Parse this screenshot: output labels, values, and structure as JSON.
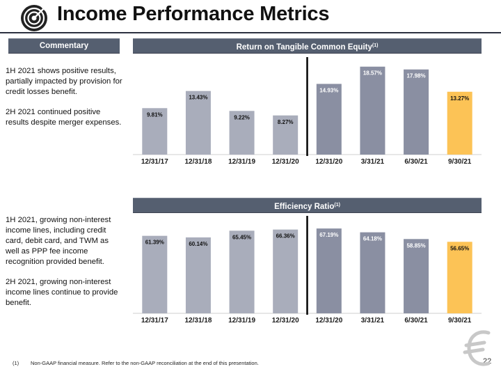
{
  "page": {
    "title": "Income Performance Metrics",
    "commentary_header": "Commentary",
    "commentary_top": [
      "1H 2021 shows positive results, partially impacted by provision for credit losses benefit.",
      "2H 2021 continued positive results despite merger expenses."
    ],
    "commentary_bottom": [
      "1H 2021, growing non-interest income lines, including credit card, debit card, and TWM as well as PPP fee income recognition provided benefit.",
      "2H 2021, growing non-interest income lines continue to provide benefit."
    ],
    "footnote_num": "(1)",
    "footnote": "Non-GAAP financial measure.  Refer to the non-GAAP reconciliation at the end of this presentation.",
    "page_number": "22"
  },
  "colors": {
    "bar_light": "#a9adbb",
    "bar_dark": "#8a8fa2",
    "bar_highlight": "#fcc356",
    "header_bg": "#555f70",
    "divider": "#000000"
  },
  "chart_data": [
    {
      "type": "bar",
      "title": "Return on Tangible Common Equity",
      "title_sup": "(1)",
      "categories": [
        "12/31/17",
        "12/31/18",
        "12/31/19",
        "12/31/20",
        "12/31/20",
        "3/31/21",
        "6/30/21",
        "9/30/21"
      ],
      "values": [
        9.81,
        13.43,
        9.22,
        8.27,
        14.93,
        18.57,
        17.98,
        13.27
      ],
      "labels": [
        "9.81%",
        "13.43%",
        "9.22%",
        "8.27%",
        "14.93%",
        "18.57%",
        "17.98%",
        "13.27%"
      ],
      "ylim": [
        0,
        20
      ],
      "grid": false,
      "divider_after_index": 3
    },
    {
      "type": "bar",
      "title": "Efficiency Ratio",
      "title_sup": "(1)",
      "categories": [
        "12/31/17",
        "12/31/18",
        "12/31/19",
        "12/31/20",
        "12/31/20",
        "3/31/21",
        "6/30/21",
        "9/30/21"
      ],
      "values": [
        61.39,
        60.14,
        65.45,
        66.36,
        67.19,
        64.18,
        58.85,
        56.65
      ],
      "labels": [
        "61.39%",
        "60.14%",
        "65.45%",
        "66.36%",
        "67.19%",
        "64.18%",
        "58.85%",
        "56.65%"
      ],
      "ylim": [
        0,
        75
      ],
      "grid": false,
      "divider_after_index": 3
    }
  ]
}
